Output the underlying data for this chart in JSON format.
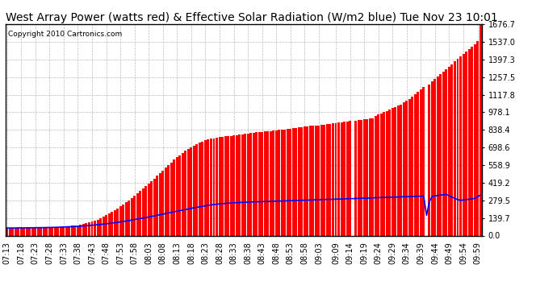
{
  "title": "West Array Power (watts red) & Effective Solar Radiation (W/m2 blue) Tue Nov 23 10:01",
  "copyright": "Copyright 2010 Cartronics.com",
  "background_color": "#ffffff",
  "plot_bg_color": "#ffffff",
  "grid_color": "#bbbbbb",
  "y_ticks": [
    0.0,
    139.7,
    279.5,
    419.2,
    558.9,
    698.6,
    838.4,
    978.1,
    1117.8,
    1257.5,
    1397.3,
    1537.0,
    1676.7
  ],
  "y_max": 1676.7,
  "x_tick_labels": [
    "07:13",
    "07:18",
    "07:23",
    "07:28",
    "07:33",
    "07:38",
    "07:43",
    "07:48",
    "07:53",
    "07:58",
    "08:03",
    "08:08",
    "08:13",
    "08:18",
    "08:23",
    "08:28",
    "08:33",
    "08:38",
    "08:43",
    "08:48",
    "08:53",
    "08:58",
    "09:03",
    "09:09",
    "09:14",
    "09:19",
    "09:24",
    "09:29",
    "09:34",
    "09:39",
    "09:44",
    "09:49",
    "09:54",
    "09:59"
  ],
  "x_tick_positions": [
    0,
    5,
    10,
    15,
    20,
    25,
    30,
    35,
    40,
    45,
    50,
    55,
    60,
    65,
    70,
    75,
    80,
    85,
    90,
    95,
    100,
    105,
    110,
    116,
    121,
    126,
    131,
    136,
    141,
    146,
    151,
    156,
    161,
    166
  ],
  "red_color": "#ff0000",
  "blue_color": "#0000ff",
  "title_fontsize": 10,
  "tick_fontsize": 7,
  "copyright_fontsize": 6.5,
  "red_data": [
    55,
    57,
    58,
    58,
    59,
    60,
    60,
    61,
    61,
    62,
    63,
    63,
    64,
    64,
    65,
    66,
    66,
    67,
    68,
    70,
    72,
    74,
    76,
    78,
    80,
    83,
    87,
    92,
    97,
    103,
    110,
    118,
    127,
    137,
    148,
    160,
    173,
    186,
    200,
    215,
    230,
    246,
    263,
    280,
    297,
    315,
    333,
    352,
    371,
    391,
    411,
    431,
    452,
    473,
    494,
    515,
    537,
    559,
    580,
    601,
    620,
    638,
    655,
    671,
    686,
    700,
    713,
    725,
    736,
    746,
    754,
    761,
    767,
    772,
    776,
    780,
    783,
    786,
    789,
    792,
    795,
    798,
    801,
    804,
    807,
    810,
    813,
    816,
    819,
    820,
    823,
    826,
    828,
    830,
    833,
    835,
    837,
    840,
    843,
    846,
    848,
    851,
    854,
    857,
    860,
    863,
    866,
    869,
    870,
    872,
    875,
    878,
    880,
    883,
    886,
    889,
    892,
    895,
    898,
    901,
    904,
    910,
    0,
    913,
    916,
    919,
    922,
    925,
    928,
    931,
    950,
    960,
    970,
    980,
    990,
    1000,
    1010,
    1020,
    1030,
    1040,
    1055,
    1070,
    1085,
    1100,
    1120,
    1140,
    1160,
    1180,
    0,
    1200,
    1220,
    1240,
    1260,
    1280,
    1300,
    1320,
    1340,
    1360,
    1380,
    1400,
    1420,
    1440,
    1460,
    1480,
    1500,
    1520,
    1540,
    1676
  ],
  "blue_data": [
    60,
    60,
    60,
    60,
    61,
    61,
    61,
    61,
    62,
    62,
    62,
    63,
    63,
    63,
    64,
    64,
    65,
    65,
    66,
    67,
    68,
    69,
    70,
    71,
    72,
    73,
    75,
    76,
    78,
    80,
    82,
    84,
    86,
    88,
    91,
    93,
    96,
    99,
    102,
    105,
    108,
    112,
    115,
    119,
    123,
    127,
    131,
    135,
    139,
    143,
    147,
    152,
    156,
    161,
    165,
    170,
    175,
    180,
    184,
    189,
    193,
    198,
    202,
    207,
    211,
    216,
    220,
    224,
    228,
    232,
    236,
    240,
    243,
    246,
    249,
    251,
    253,
    255,
    257,
    258,
    260,
    261,
    262,
    263,
    264,
    265,
    266,
    267,
    268,
    268,
    269,
    270,
    271,
    271,
    272,
    273,
    274,
    274,
    275,
    276,
    277,
    277,
    278,
    279,
    280,
    281,
    281,
    282,
    283,
    284,
    284,
    285,
    286,
    287,
    287,
    288,
    289,
    290,
    290,
    291,
    292,
    293,
    293,
    294,
    295,
    296,
    296,
    297,
    298,
    299,
    300,
    301,
    302,
    303,
    303,
    304,
    305,
    305,
    306,
    307,
    308,
    308,
    309,
    310,
    311,
    312,
    312,
    313,
    160,
    270,
    310,
    315,
    318,
    321,
    324,
    327,
    315,
    305,
    295,
    285,
    280,
    282,
    285,
    288,
    291,
    294,
    308,
    320
  ]
}
